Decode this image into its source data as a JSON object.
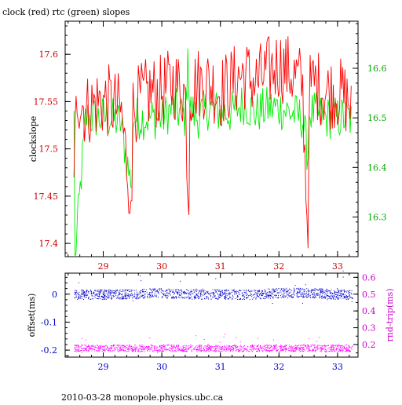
{
  "page": {
    "title": "clock (red) rtc (green) slopes",
    "footer": "2010-03-28 monopole.physics.ubc.ca"
  },
  "colors": {
    "clock": "#ff0000",
    "rtc": "#00ee00",
    "offset": "#0000cc",
    "rndtrip": "#ff00ff",
    "frame": "#000000"
  },
  "chart_data": [
    {
      "type": "line",
      "title": "clock (red) rtc (green) slopes",
      "xlim": [
        28.35,
        33.35
      ],
      "x_ticks": [
        29,
        30,
        31,
        32,
        33
      ],
      "ylabel": "clockslope",
      "ylim": [
        17.386,
        17.635
      ],
      "y_ticks": [
        "17.4",
        "17.45",
        "17.5",
        "17.55",
        "17.6"
      ],
      "y2lim": [
        16.22,
        16.695
      ],
      "y2_ticks": [
        "16.3",
        "16.4",
        "16.5",
        "16.6"
      ],
      "grid": false,
      "series": [
        {
          "name": "clock",
          "axis": "left",
          "x": [
            28.5,
            28.55,
            28.7,
            28.9,
            29.1,
            29.3,
            29.48,
            29.49,
            29.6,
            29.8,
            30.0,
            30.2,
            30.4,
            30.46,
            30.47,
            30.6,
            30.8,
            31.0,
            31.2,
            31.4,
            31.6,
            31.8,
            32.0,
            32.2,
            32.4,
            32.5,
            32.51,
            32.6,
            32.8,
            33.0,
            33.2,
            33.25
          ],
          "values": [
            17.47,
            17.56,
            17.54,
            17.55,
            17.55,
            17.54,
            17.445,
            17.54,
            17.55,
            17.56,
            17.56,
            17.57,
            17.56,
            17.43,
            17.56,
            17.57,
            17.57,
            17.56,
            17.57,
            17.58,
            17.57,
            17.58,
            17.59,
            17.58,
            17.57,
            17.395,
            17.56,
            17.57,
            17.56,
            17.56,
            17.55,
            17.54
          ]
        },
        {
          "name": "rtc",
          "axis": "right",
          "x": [
            28.5,
            28.52,
            28.7,
            28.9,
            29.1,
            29.3,
            29.48,
            29.49,
            29.6,
            29.8,
            30.0,
            30.2,
            30.4,
            30.45,
            30.47,
            30.6,
            30.8,
            31.0,
            31.2,
            31.4,
            31.6,
            31.8,
            32.0,
            32.2,
            32.4,
            32.5,
            32.51,
            32.6,
            32.8,
            33.0,
            33.2,
            33.25
          ],
          "values": [
            16.5,
            16.22,
            16.5,
            16.5,
            16.5,
            16.49,
            16.36,
            16.5,
            16.5,
            16.5,
            16.5,
            16.52,
            16.5,
            16.64,
            16.52,
            16.5,
            16.52,
            16.51,
            16.51,
            16.53,
            16.51,
            16.52,
            16.52,
            16.51,
            16.5,
            16.42,
            16.51,
            16.51,
            16.5,
            16.5,
            16.5,
            16.49
          ]
        }
      ]
    },
    {
      "type": "scatter",
      "xlim": [
        28.35,
        33.35
      ],
      "x_ticks": [
        29,
        30,
        31,
        32,
        33
      ],
      "ylabel": "offset(ms)",
      "ylim": [
        -0.225,
        0.075
      ],
      "y_ticks": [
        "0",
        "-0.1",
        "-0.2"
      ],
      "y2label": "rnd-trip(ms)",
      "y2lim": [
        0.125,
        0.625
      ],
      "y2_ticks": [
        "0.2",
        "0.3",
        "0.4",
        "0.5",
        "0.6"
      ],
      "grid": false,
      "series": [
        {
          "name": "offset",
          "axis": "left",
          "x": [
            28.5,
            29.0,
            29.5,
            30.0,
            30.5,
            31.0,
            31.5,
            32.0,
            32.5,
            33.0,
            33.25
          ],
          "values": [
            0.0,
            0.0,
            0.0,
            0.005,
            0.0,
            0.0,
            0.0,
            0.005,
            0.005,
            0.0,
            0.0
          ]
        },
        {
          "name": "rnd-trip",
          "axis": "right",
          "x": [
            28.5,
            29.0,
            29.5,
            30.0,
            30.5,
            31.0,
            31.5,
            32.0,
            32.5,
            33.0,
            33.25
          ],
          "values": [
            0.18,
            0.18,
            0.18,
            0.18,
            0.18,
            0.18,
            0.18,
            0.18,
            0.18,
            0.18,
            0.18
          ]
        }
      ]
    }
  ]
}
